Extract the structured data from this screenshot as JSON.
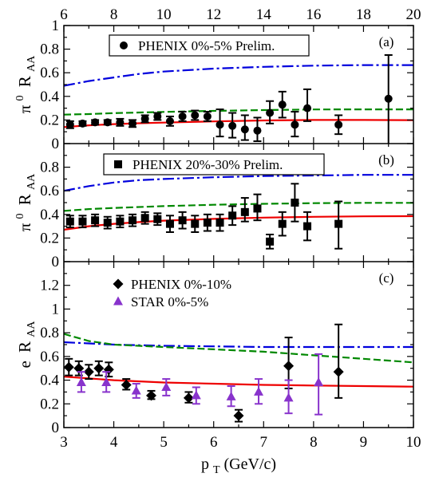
{
  "chart_data": [
    {
      "type": "scatter",
      "panel_label": "(a)",
      "ylabel_parts": {
        "sup": "0",
        "base": "π",
        "mid": "R",
        "sub": "AA"
      },
      "xlim": [
        6,
        20
      ],
      "x_top_ticks": [
        "6",
        "8",
        "10",
        "12",
        "14",
        "16",
        "18",
        "20"
      ],
      "ylim": [
        0,
        1
      ],
      "yticks": [
        "0",
        "0.2",
        "0.4",
        "0.6",
        "0.8",
        "1"
      ],
      "legend": {
        "position": "top-left",
        "entries": [
          "PHENIX 0%-5% Prelim."
        ]
      },
      "series": [
        {
          "name": "PHENIX 0%-5% Prelim.",
          "marker": "circle",
          "color": "#000000",
          "points": [
            {
              "x": 6.25,
              "y": 0.16,
              "lo": 0.13,
              "hi": 0.19
            },
            {
              "x": 6.75,
              "y": 0.17,
              "lo": 0.15,
              "hi": 0.19
            },
            {
              "x": 7.25,
              "y": 0.18,
              "lo": 0.16,
              "hi": 0.2
            },
            {
              "x": 7.75,
              "y": 0.18,
              "lo": 0.16,
              "hi": 0.2
            },
            {
              "x": 8.25,
              "y": 0.18,
              "lo": 0.15,
              "hi": 0.21
            },
            {
              "x": 8.75,
              "y": 0.17,
              "lo": 0.14,
              "hi": 0.2
            },
            {
              "x": 9.25,
              "y": 0.21,
              "lo": 0.18,
              "hi": 0.24
            },
            {
              "x": 9.75,
              "y": 0.23,
              "lo": 0.2,
              "hi": 0.26
            },
            {
              "x": 10.25,
              "y": 0.19,
              "lo": 0.15,
              "hi": 0.23
            },
            {
              "x": 10.75,
              "y": 0.23,
              "lo": 0.19,
              "hi": 0.27
            },
            {
              "x": 11.25,
              "y": 0.24,
              "lo": 0.2,
              "hi": 0.28
            },
            {
              "x": 11.75,
              "y": 0.23,
              "lo": 0.19,
              "hi": 0.27
            },
            {
              "x": 12.25,
              "y": 0.16,
              "lo": 0.06,
              "hi": 0.29
            },
            {
              "x": 12.75,
              "y": 0.15,
              "lo": 0.05,
              "hi": 0.26
            },
            {
              "x": 13.25,
              "y": 0.12,
              "lo": 0.03,
              "hi": 0.24
            },
            {
              "x": 13.75,
              "y": 0.11,
              "lo": 0.02,
              "hi": 0.22
            },
            {
              "x": 14.25,
              "y": 0.26,
              "lo": 0.17,
              "hi": 0.36
            },
            {
              "x": 14.75,
              "y": 0.33,
              "lo": 0.22,
              "hi": 0.44
            },
            {
              "x": 15.25,
              "y": 0.16,
              "lo": 0.06,
              "hi": 0.27
            },
            {
              "x": 15.75,
              "y": 0.3,
              "lo": 0.19,
              "hi": 0.46
            },
            {
              "x": 17.0,
              "y": 0.16,
              "lo": 0.08,
              "hi": 0.24
            },
            {
              "x": 19.0,
              "y": 0.38,
              "lo": 0.0,
              "hi": 0.75
            }
          ]
        }
      ],
      "curves": [
        {
          "style": "dash-dot",
          "color": "#0000dd",
          "x": [
            6,
            7,
            8,
            9,
            10,
            12,
            14,
            16,
            18,
            20
          ],
          "y": [
            0.49,
            0.53,
            0.56,
            0.59,
            0.61,
            0.635,
            0.65,
            0.66,
            0.665,
            0.665
          ]
        },
        {
          "style": "dashed",
          "color": "#008800",
          "x": [
            6,
            7,
            8,
            10,
            12,
            14,
            16,
            18,
            20
          ],
          "y": [
            0.245,
            0.25,
            0.258,
            0.268,
            0.277,
            0.284,
            0.289,
            0.29,
            0.29
          ]
        },
        {
          "style": "solid",
          "color": "#ee0000",
          "x": [
            6,
            7,
            8,
            9,
            10,
            12,
            14,
            16,
            18,
            20
          ],
          "y": [
            0.14,
            0.155,
            0.165,
            0.172,
            0.178,
            0.188,
            0.196,
            0.2,
            0.2,
            0.198
          ]
        }
      ]
    },
    {
      "type": "scatter",
      "panel_label": "(b)",
      "ylabel_parts": {
        "sup": "0",
        "base": "π",
        "mid": "R",
        "sub": "AA"
      },
      "xlim": [
        6,
        20
      ],
      "ylim": [
        0,
        1
      ],
      "yticks": [
        "0",
        "0.2",
        "0.4",
        "0.6",
        "0.8"
      ],
      "legend": {
        "position": "top-left",
        "entries": [
          "PHENIX 20%-30% Prelim."
        ]
      },
      "series": [
        {
          "name": "PHENIX 20%-30% Prelim.",
          "marker": "square",
          "color": "#000000",
          "points": [
            {
              "x": 6.25,
              "y": 0.34,
              "lo": 0.29,
              "hi": 0.39
            },
            {
              "x": 6.75,
              "y": 0.34,
              "lo": 0.29,
              "hi": 0.39
            },
            {
              "x": 7.25,
              "y": 0.35,
              "lo": 0.3,
              "hi": 0.4
            },
            {
              "x": 7.75,
              "y": 0.33,
              "lo": 0.28,
              "hi": 0.38
            },
            {
              "x": 8.25,
              "y": 0.34,
              "lo": 0.29,
              "hi": 0.39
            },
            {
              "x": 8.75,
              "y": 0.35,
              "lo": 0.3,
              "hi": 0.4
            },
            {
              "x": 9.25,
              "y": 0.37,
              "lo": 0.32,
              "hi": 0.42
            },
            {
              "x": 9.75,
              "y": 0.36,
              "lo": 0.31,
              "hi": 0.41
            },
            {
              "x": 10.25,
              "y": 0.32,
              "lo": 0.25,
              "hi": 0.39
            },
            {
              "x": 10.75,
              "y": 0.35,
              "lo": 0.28,
              "hi": 0.42
            },
            {
              "x": 11.25,
              "y": 0.32,
              "lo": 0.25,
              "hi": 0.39
            },
            {
              "x": 11.75,
              "y": 0.33,
              "lo": 0.26,
              "hi": 0.4
            },
            {
              "x": 12.25,
              "y": 0.33,
              "lo": 0.26,
              "hi": 0.4
            },
            {
              "x": 12.75,
              "y": 0.39,
              "lo": 0.31,
              "hi": 0.47
            },
            {
              "x": 13.25,
              "y": 0.42,
              "lo": 0.34,
              "hi": 0.54
            },
            {
              "x": 13.75,
              "y": 0.45,
              "lo": 0.35,
              "hi": 0.57
            },
            {
              "x": 14.25,
              "y": 0.17,
              "lo": 0.11,
              "hi": 0.23
            },
            {
              "x": 14.75,
              "y": 0.32,
              "lo": 0.22,
              "hi": 0.42
            },
            {
              "x": 15.25,
              "y": 0.5,
              "lo": 0.34,
              "hi": 0.66
            },
            {
              "x": 15.75,
              "y": 0.3,
              "lo": 0.18,
              "hi": 0.42
            },
            {
              "x": 17.0,
              "y": 0.32,
              "lo": 0.11,
              "hi": 0.51
            }
          ]
        }
      ],
      "curves": [
        {
          "style": "dash-dot",
          "color": "#0000dd",
          "x": [
            6,
            7,
            8,
            9,
            10,
            12,
            14,
            16,
            18,
            20
          ],
          "y": [
            0.6,
            0.64,
            0.67,
            0.69,
            0.7,
            0.715,
            0.725,
            0.73,
            0.735,
            0.735
          ]
        },
        {
          "style": "dashed",
          "color": "#008800",
          "x": [
            6,
            7,
            8,
            10,
            12,
            14,
            16,
            18,
            20
          ],
          "y": [
            0.43,
            0.445,
            0.455,
            0.47,
            0.482,
            0.49,
            0.495,
            0.498,
            0.498
          ]
        },
        {
          "style": "solid",
          "color": "#ee0000",
          "x": [
            6,
            7,
            8,
            9,
            10,
            12,
            14,
            16,
            18,
            20
          ],
          "y": [
            0.27,
            0.3,
            0.32,
            0.335,
            0.347,
            0.362,
            0.373,
            0.38,
            0.384,
            0.385
          ]
        }
      ]
    },
    {
      "type": "scatter",
      "panel_label": "(c)",
      "ylabel_parts": {
        "base": "e",
        "mid": "R",
        "sub": "AA"
      },
      "xlabel_parts": {
        "base": "p",
        "sub": "T",
        "rest": " (GeV/c)"
      },
      "xlim": [
        3,
        10
      ],
      "xticks": [
        "3",
        "4",
        "5",
        "6",
        "7",
        "8",
        "9",
        "10"
      ],
      "ylim": [
        0,
        1.4
      ],
      "yticks": [
        "0",
        "0.2",
        "0.4",
        "0.6",
        "0.8",
        "1",
        "1.2"
      ],
      "legend": {
        "position": "top-left",
        "entries": [
          "PHENIX 0%-10%",
          "STAR 0%-5%"
        ]
      },
      "series": [
        {
          "name": "PHENIX 0%-10%",
          "marker": "diamond",
          "color": "#000000",
          "points": [
            {
              "x": 3.1,
              "y": 0.51,
              "lo": 0.44,
              "hi": 0.58
            },
            {
              "x": 3.3,
              "y": 0.5,
              "lo": 0.44,
              "hi": 0.56
            },
            {
              "x": 3.5,
              "y": 0.47,
              "lo": 0.41,
              "hi": 0.53
            },
            {
              "x": 3.7,
              "y": 0.5,
              "lo": 0.44,
              "hi": 0.56
            },
            {
              "x": 3.9,
              "y": 0.49,
              "lo": 0.43,
              "hi": 0.55
            },
            {
              "x": 4.25,
              "y": 0.36,
              "lo": 0.32,
              "hi": 0.41
            },
            {
              "x": 4.75,
              "y": 0.27,
              "lo": 0.24,
              "hi": 0.31
            },
            {
              "x": 5.5,
              "y": 0.25,
              "lo": 0.21,
              "hi": 0.3
            },
            {
              "x": 6.5,
              "y": 0.1,
              "lo": 0.05,
              "hi": 0.15
            },
            {
              "x": 7.5,
              "y": 0.52,
              "lo": 0.33,
              "hi": 0.76
            },
            {
              "x": 8.5,
              "y": 0.47,
              "lo": 0.25,
              "hi": 0.87
            }
          ]
        },
        {
          "name": "STAR 0%-5%",
          "marker": "triangle",
          "color": "#8833cc",
          "points": [
            {
              "x": 3.35,
              "y": 0.38,
              "lo": 0.3,
              "hi": 0.47
            },
            {
              "x": 3.85,
              "y": 0.38,
              "lo": 0.3,
              "hi": 0.47
            },
            {
              "x": 4.45,
              "y": 0.31,
              "lo": 0.25,
              "hi": 0.37
            },
            {
              "x": 5.05,
              "y": 0.34,
              "lo": 0.27,
              "hi": 0.41
            },
            {
              "x": 5.65,
              "y": 0.27,
              "lo": 0.2,
              "hi": 0.34
            },
            {
              "x": 6.35,
              "y": 0.26,
              "lo": 0.18,
              "hi": 0.35
            },
            {
              "x": 6.9,
              "y": 0.3,
              "lo": 0.2,
              "hi": 0.41
            },
            {
              "x": 7.5,
              "y": 0.25,
              "lo": 0.12,
              "hi": 0.4
            },
            {
              "x": 8.1,
              "y": 0.38,
              "lo": 0.11,
              "hi": 0.62
            }
          ]
        }
      ],
      "curves": [
        {
          "style": "dash-dot",
          "color": "#0000dd",
          "x": [
            3,
            3.5,
            4,
            5,
            6,
            7,
            8,
            9,
            10
          ],
          "y": [
            0.72,
            0.71,
            0.7,
            0.69,
            0.685,
            0.68,
            0.68,
            0.68,
            0.68
          ]
        },
        {
          "style": "dashed",
          "color": "#008800",
          "x": [
            3,
            3.5,
            4,
            5,
            6,
            7,
            8,
            9,
            10
          ],
          "y": [
            0.79,
            0.73,
            0.7,
            0.68,
            0.66,
            0.64,
            0.61,
            0.58,
            0.55
          ]
        },
        {
          "style": "solid",
          "color": "#ee0000",
          "x": [
            3,
            4,
            5,
            6,
            7,
            8,
            9,
            10
          ],
          "y": [
            0.43,
            0.4,
            0.38,
            0.37,
            0.36,
            0.355,
            0.35,
            0.345
          ]
        }
      ]
    }
  ]
}
